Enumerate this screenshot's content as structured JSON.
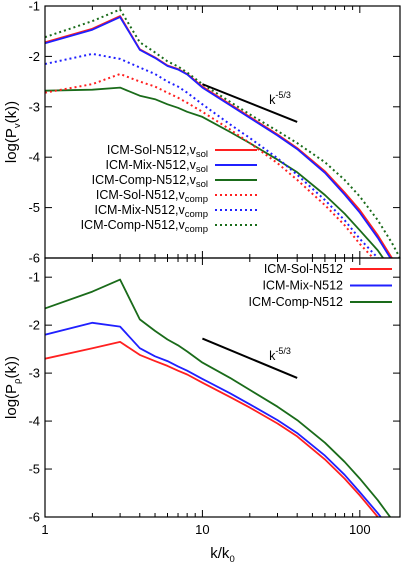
{
  "chart_data": [
    {
      "type": "line",
      "panel": "top",
      "xlabel": "",
      "ylabel": "log(P_v(k))",
      "xscale": "log",
      "xlim": [
        1,
        180
      ],
      "ylim": [
        -6,
        -1
      ],
      "yticks": [
        "-1",
        "-2",
        "-3",
        "-4",
        "-5",
        "-6"
      ],
      "xticks_labeled": false,
      "annotation": {
        "text": "k",
        "superscript": "-5/3",
        "line": [
          [
            10,
            -2.55
          ],
          [
            40,
            -3.3
          ]
        ]
      },
      "legend_position": "bottom-left",
      "series": [
        {
          "name": "ICM-Sol-N512,v",
          "name_sub": "sol",
          "color": "#ff2020",
          "dash": "solid",
          "x": [
            1,
            2,
            3,
            4,
            5,
            6,
            7,
            8,
            10,
            15,
            20,
            30,
            40,
            60,
            80,
            100,
            130,
            160,
            180
          ],
          "y": [
            -1.72,
            -1.45,
            -1.2,
            -1.86,
            -2.02,
            -2.18,
            -2.25,
            -2.35,
            -2.6,
            -2.95,
            -3.2,
            -3.55,
            -3.82,
            -4.28,
            -4.7,
            -5.05,
            -5.55,
            -6.0,
            -6.2
          ]
        },
        {
          "name": "ICM-Mix-N512,v",
          "name_sub": "sol",
          "color": "#2020ff",
          "dash": "solid",
          "x": [
            1,
            2,
            3,
            4,
            5,
            6,
            7,
            8,
            10,
            15,
            20,
            30,
            40,
            60,
            80,
            100,
            130,
            160,
            180
          ],
          "y": [
            -1.74,
            -1.47,
            -1.22,
            -1.87,
            -2.03,
            -2.19,
            -2.26,
            -2.36,
            -2.62,
            -2.97,
            -3.22,
            -3.57,
            -3.84,
            -4.31,
            -4.74,
            -5.1,
            -5.6,
            -6.05,
            -6.25
          ]
        },
        {
          "name": "ICM-Comp-N512,v",
          "name_sub": "sol",
          "color": "#1a6b1a",
          "dash": "solid",
          "x": [
            1,
            2,
            3,
            4,
            5,
            6,
            7,
            8,
            10,
            15,
            20,
            30,
            40,
            60,
            80,
            100,
            130,
            160,
            180
          ],
          "y": [
            -2.68,
            -2.66,
            -2.62,
            -2.78,
            -2.85,
            -2.95,
            -3.02,
            -3.1,
            -3.2,
            -3.5,
            -3.72,
            -4.05,
            -4.3,
            -4.75,
            -5.12,
            -5.45,
            -5.85,
            -6.25,
            -6.4
          ]
        },
        {
          "name": "ICM-Sol-N512,v",
          "name_sub": "comp",
          "color": "#ff2020",
          "dash": "dot",
          "x": [
            1,
            2,
            3,
            4,
            5,
            6,
            7,
            8,
            10,
            15,
            20,
            30,
            40,
            60,
            80,
            100,
            130,
            160
          ],
          "y": [
            -2.72,
            -2.55,
            -2.35,
            -2.5,
            -2.6,
            -2.72,
            -2.82,
            -2.92,
            -3.1,
            -3.45,
            -3.72,
            -4.12,
            -4.45,
            -4.95,
            -5.35,
            -5.72,
            -6.1,
            -6.4
          ]
        },
        {
          "name": "ICM-Mix-N512,v",
          "name_sub": "comp",
          "color": "#2020ff",
          "dash": "dot",
          "x": [
            1,
            2,
            3,
            4,
            5,
            6,
            7,
            8,
            10,
            15,
            20,
            30,
            40,
            60,
            80,
            100,
            130,
            160
          ],
          "y": [
            -2.15,
            -1.95,
            -2.05,
            -2.22,
            -2.35,
            -2.5,
            -2.6,
            -2.72,
            -2.95,
            -3.35,
            -3.62,
            -4.02,
            -4.35,
            -4.85,
            -5.25,
            -5.62,
            -6.0,
            -6.3
          ]
        },
        {
          "name": "ICM-Comp-N512,v",
          "name_sub": "comp",
          "color": "#1a6b1a",
          "dash": "dot",
          "x": [
            1,
            2,
            3,
            4,
            5,
            6,
            7,
            8,
            10,
            15,
            20,
            30,
            40,
            60,
            80,
            100,
            130,
            160,
            180
          ],
          "y": [
            -1.62,
            -1.3,
            -1.07,
            -1.72,
            -1.92,
            -2.1,
            -2.2,
            -2.32,
            -2.55,
            -2.9,
            -3.15,
            -3.48,
            -3.72,
            -4.1,
            -4.45,
            -4.78,
            -5.25,
            -5.7,
            -6.0
          ]
        }
      ]
    },
    {
      "type": "line",
      "panel": "bottom",
      "xlabel": "k/k",
      "xlabel_sub": "0",
      "ylabel": "log(P_ρ(k))",
      "xscale": "log",
      "xlim": [
        1,
        180
      ],
      "ylim": [
        -6,
        -0.6
      ],
      "yticks": [
        "-1",
        "-2",
        "-3",
        "-4",
        "-5",
        "-6"
      ],
      "xticks": [
        "1",
        "10",
        "100"
      ],
      "annotation": {
        "text": "k",
        "superscript": "-5/3",
        "line": [
          [
            10,
            -2.28
          ],
          [
            40,
            -3.1
          ]
        ]
      },
      "legend_position": "top-right",
      "series": [
        {
          "name": "ICM-Sol-N512",
          "color": "#ff2020",
          "dash": "solid",
          "x": [
            1,
            2,
            3,
            4,
            5,
            6,
            7,
            8,
            10,
            15,
            20,
            30,
            40,
            60,
            80,
            100,
            130,
            160
          ],
          "y": [
            -2.7,
            -2.48,
            -2.35,
            -2.62,
            -2.75,
            -2.85,
            -2.95,
            -3.03,
            -3.2,
            -3.5,
            -3.72,
            -4.05,
            -4.32,
            -4.8,
            -5.2,
            -5.55,
            -6.0,
            -6.35
          ]
        },
        {
          "name": "ICM-Mix-N512",
          "color": "#2020ff",
          "dash": "solid",
          "x": [
            1,
            2,
            3,
            4,
            5,
            6,
            7,
            8,
            10,
            15,
            20,
            30,
            40,
            60,
            80,
            100,
            130,
            160
          ],
          "y": [
            -2.2,
            -1.95,
            -2.03,
            -2.48,
            -2.65,
            -2.75,
            -2.86,
            -2.95,
            -3.12,
            -3.42,
            -3.65,
            -3.98,
            -4.25,
            -4.72,
            -5.12,
            -5.48,
            -5.92,
            -6.3
          ]
        },
        {
          "name": "ICM-Comp-N512",
          "color": "#1a6b1a",
          "dash": "solid",
          "x": [
            1,
            2,
            3,
            4,
            5,
            6,
            7,
            8,
            10,
            15,
            20,
            30,
            40,
            60,
            80,
            100,
            130,
            160,
            180
          ],
          "y": [
            -1.65,
            -1.3,
            -1.05,
            -1.88,
            -2.12,
            -2.3,
            -2.42,
            -2.55,
            -2.78,
            -3.1,
            -3.35,
            -3.7,
            -3.98,
            -4.45,
            -4.85,
            -5.2,
            -5.65,
            -6.05,
            -6.25
          ]
        }
      ]
    }
  ]
}
